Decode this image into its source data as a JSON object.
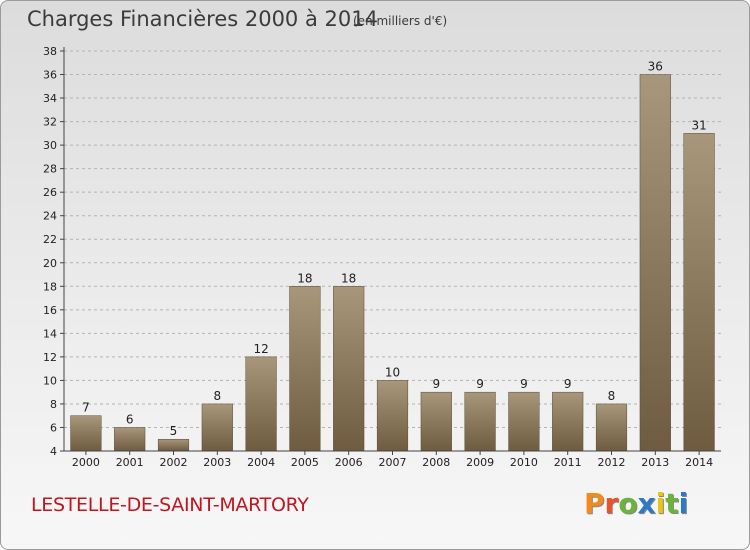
{
  "header": {
    "title": "Charges Financières 2000 à 2014",
    "subtitle": "(en milliers d'€)"
  },
  "footer": {
    "commune": "LESTELLE-DE-SAINT-MARTORY",
    "logo_letters": [
      "P",
      "r",
      "o",
      "x",
      "i",
      "t",
      "i"
    ]
  },
  "colors": {
    "bar_light": "#a8977a",
    "bar_dark": "#6e5b40",
    "logo": [
      "#f08c1e",
      "#e8532a",
      "#6bb33c",
      "#2e78c8",
      "#e8c31a",
      "#6bb33c",
      "#2e78c8"
    ]
  },
  "chart_data": {
    "type": "bar",
    "title": "Charges Financières 2000 à 2014",
    "subtitle": "(en milliers d'€)",
    "categories": [
      "2000",
      "2001",
      "2002",
      "2003",
      "2004",
      "2005",
      "2006",
      "2007",
      "2008",
      "2009",
      "2010",
      "2011",
      "2012",
      "2013",
      "2014"
    ],
    "values": [
      7,
      6,
      5,
      8,
      12,
      18,
      18,
      10,
      9,
      9,
      9,
      9,
      8,
      36,
      31
    ],
    "ylim": [
      4,
      38
    ],
    "yticks": [
      4,
      6,
      8,
      10,
      12,
      14,
      16,
      18,
      20,
      22,
      24,
      26,
      28,
      30,
      32,
      34,
      36,
      38
    ],
    "grid": "horizontal-dashed",
    "legend": "none"
  }
}
